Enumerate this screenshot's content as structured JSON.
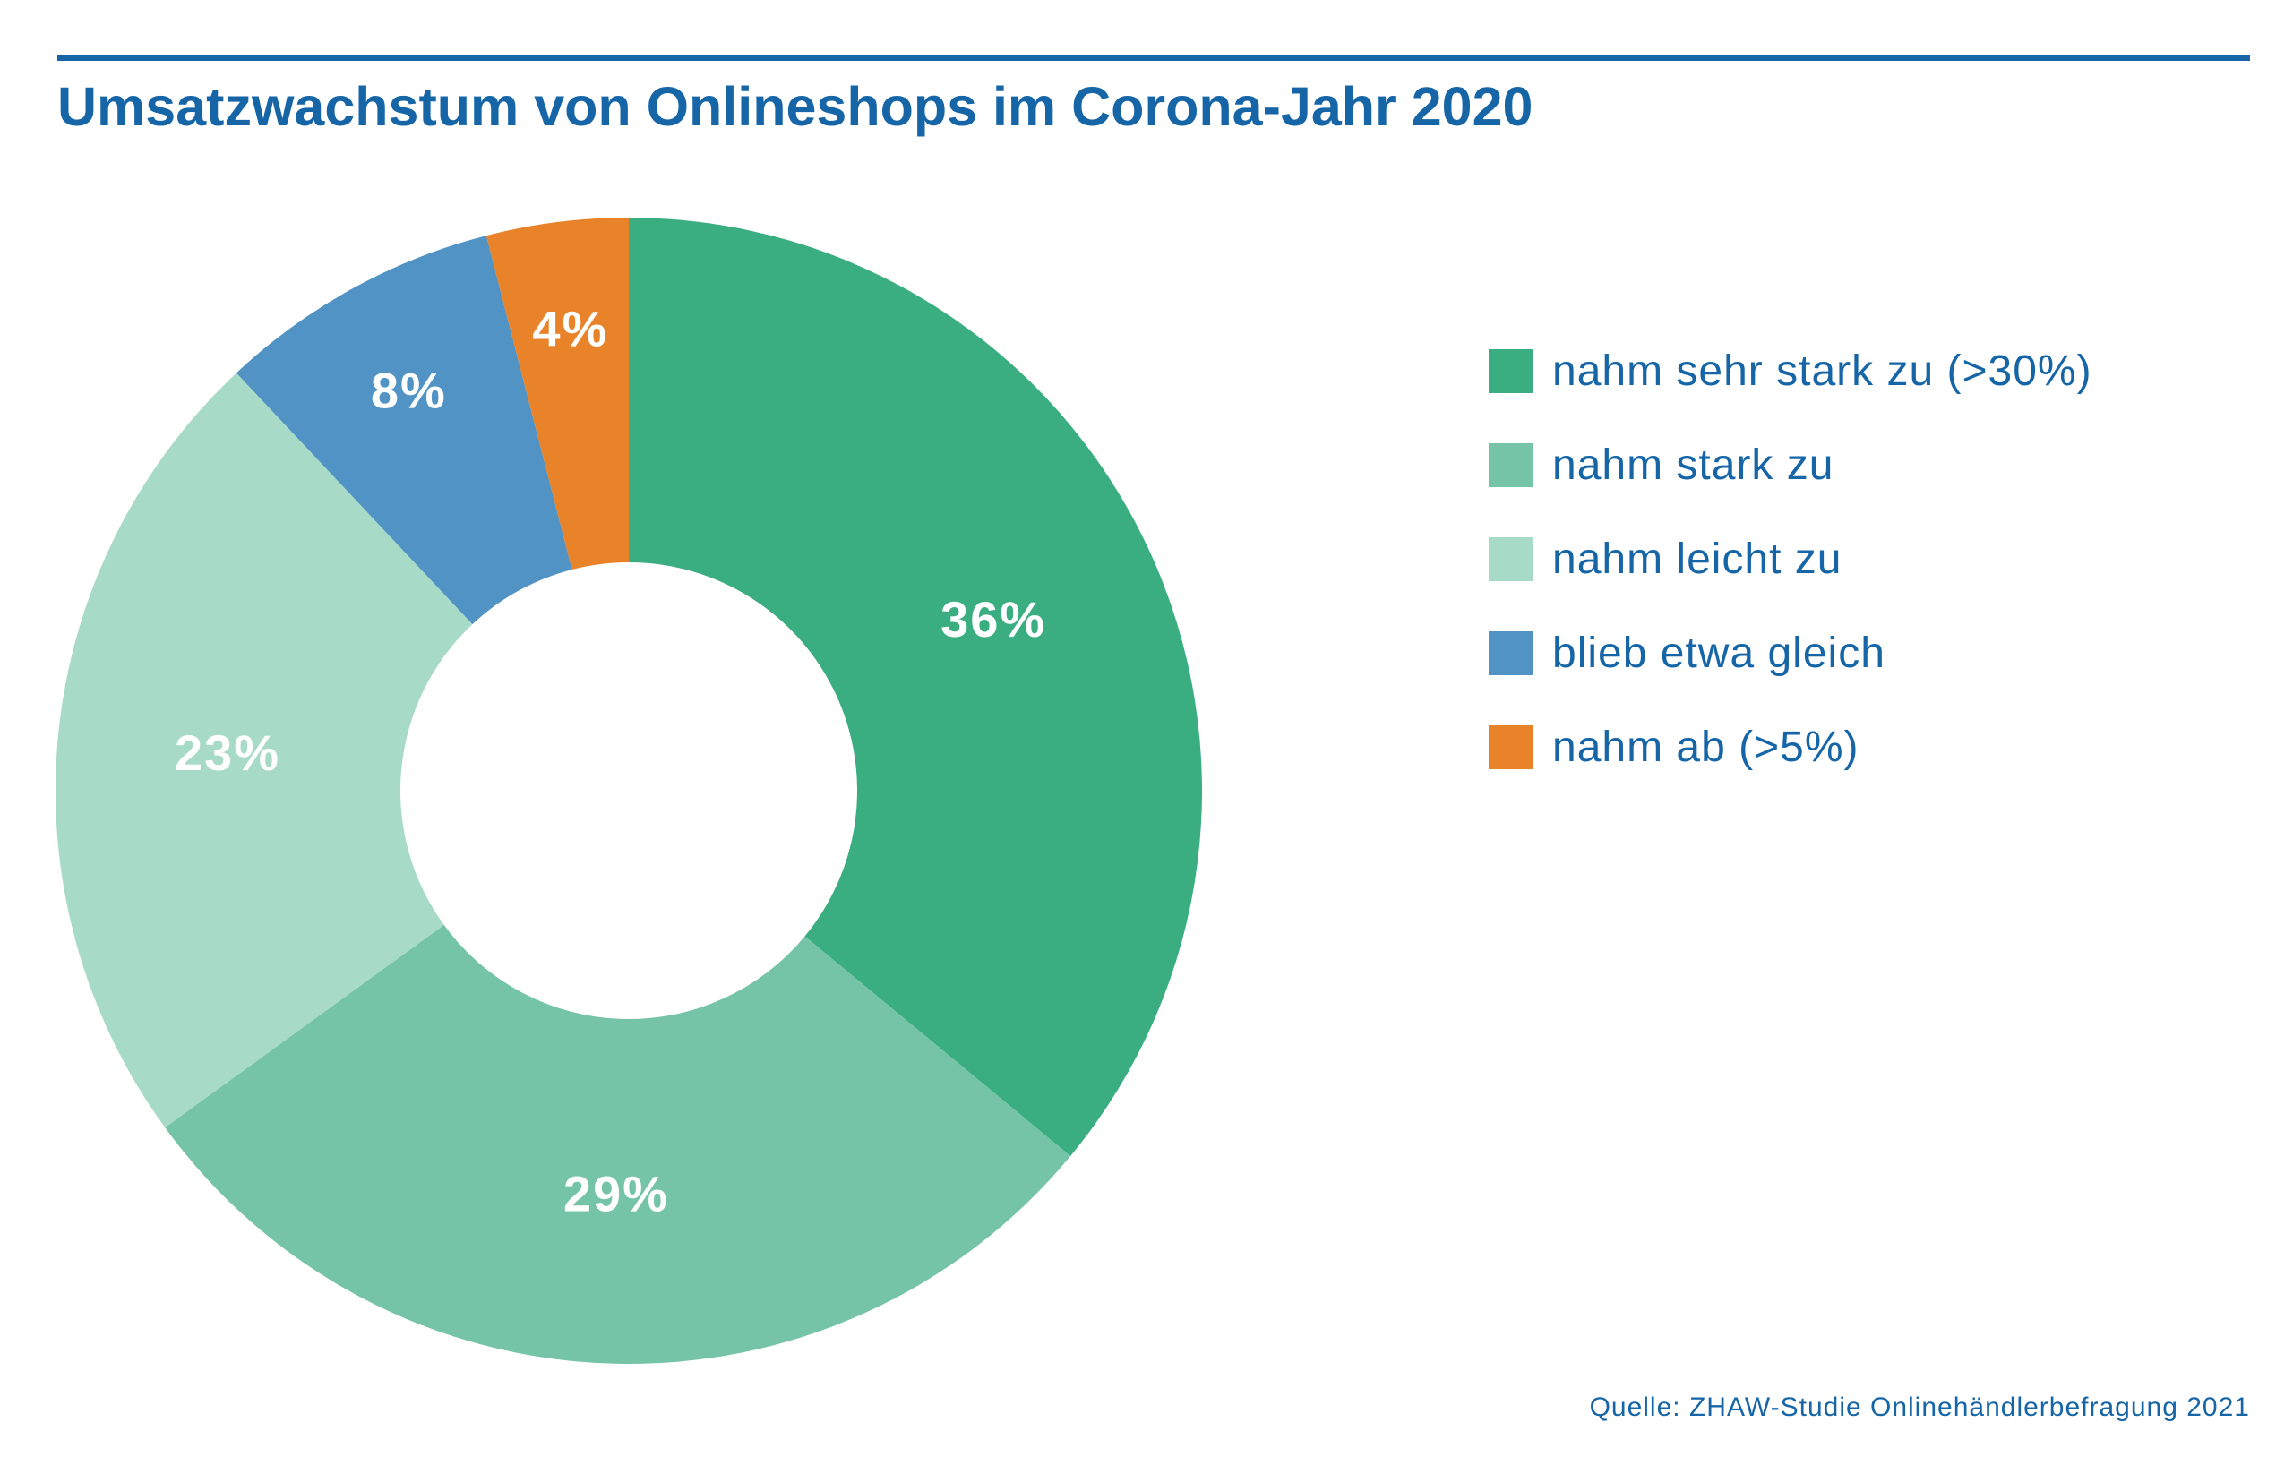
{
  "chart_data": {
    "type": "pie",
    "title": "Umsatzwachstum von Onlineshops im Corona-Jahr 2020",
    "categories": [
      "nahm sehr stark zu (>30%)",
      "nahm stark zu",
      "nahm leicht zu",
      "blieb etwa gleich",
      "nahm ab (>5%)"
    ],
    "values": [
      36,
      29,
      23,
      8,
      4
    ],
    "value_labels": [
      "36%",
      "29%",
      "23%",
      "8%",
      "4%"
    ],
    "colors": [
      "#3aad81",
      "#76c4a8",
      "#a7dac7",
      "#5093c4",
      "#e8832a"
    ],
    "donut": true,
    "legend_position": "right",
    "source": "Quelle: ZHAW-Studie Onlinehändlerbefragung 2021"
  }
}
